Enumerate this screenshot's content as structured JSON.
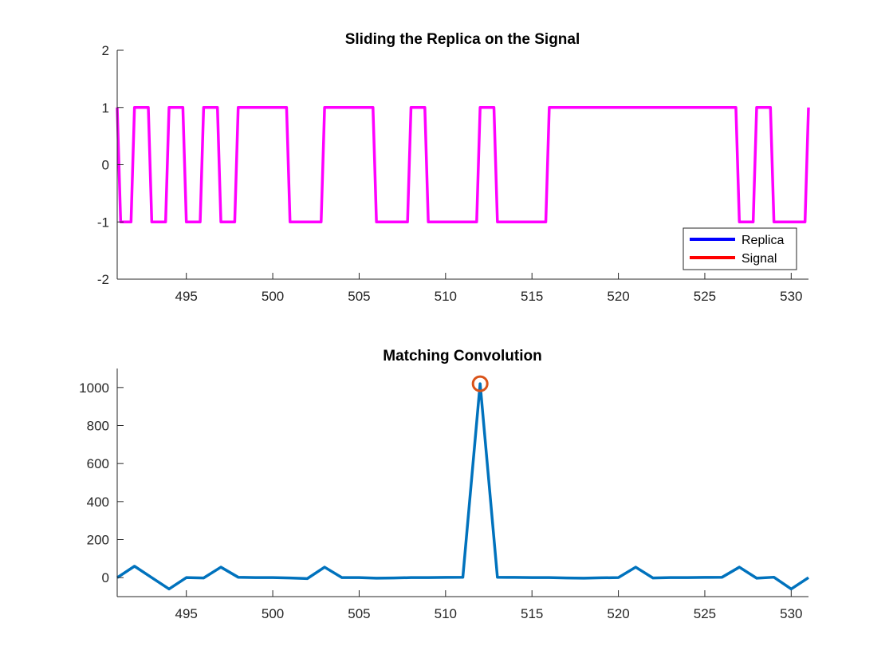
{
  "chart_data": [
    {
      "type": "line",
      "title": "Sliding the Replica on the Signal",
      "xlim": [
        491,
        531
      ],
      "ylim": [
        -2,
        2
      ],
      "xticks": [
        495,
        500,
        505,
        510,
        515,
        520,
        525,
        530
      ],
      "yticks": [
        -2,
        -1,
        0,
        1,
        2
      ],
      "grid": false,
      "legend_position": "bottom-right",
      "legend": [
        "Replica",
        "Signal"
      ],
      "series": [
        {
          "name": "Replica",
          "color": "#0000ff",
          "style": "line",
          "x": [],
          "y": []
        },
        {
          "name": "Signal",
          "color": "#ff0000",
          "style": "line",
          "x": [],
          "y": []
        },
        {
          "color": "#ff00ff",
          "style": "step",
          "x": [
            491,
            491.2,
            491.8,
            492,
            492.8,
            493,
            493.8,
            494,
            494.8,
            495,
            495.8,
            496,
            496.8,
            497,
            497.8,
            498,
            500.8,
            501,
            502.8,
            503,
            505.8,
            506,
            507.8,
            508,
            508.8,
            509,
            511.8,
            512,
            512.8,
            513,
            515.8,
            516,
            526.8,
            527,
            527.8,
            528,
            528.8,
            529,
            530.8,
            531
          ],
          "y": [
            1,
            -1,
            -1,
            1,
            1,
            -1,
            -1,
            1,
            1,
            -1,
            -1,
            1,
            1,
            -1,
            -1,
            1,
            1,
            -1,
            -1,
            1,
            1,
            -1,
            -1,
            1,
            1,
            -1,
            -1,
            1,
            1,
            -1,
            -1,
            1,
            1,
            -1,
            -1,
            1,
            1,
            -1,
            -1,
            1
          ]
        }
      ]
    },
    {
      "type": "line",
      "title": "Matching Convolution",
      "xlim": [
        491,
        531
      ],
      "ylim": [
        -100,
        1100
      ],
      "xticks": [
        495,
        500,
        505,
        510,
        515,
        520,
        525,
        530
      ],
      "yticks": [
        0,
        200,
        400,
        600,
        800,
        1000
      ],
      "grid": false,
      "series": [
        {
          "color": "#0072bd",
          "style": "line",
          "x": [
            491,
            492,
            493,
            494,
            495,
            496,
            497,
            498,
            499,
            500,
            501,
            502,
            503,
            504,
            505,
            506,
            507,
            508,
            509,
            510,
            511,
            512,
            513,
            514,
            515,
            516,
            517,
            518,
            519,
            520,
            521,
            522,
            523,
            524,
            525,
            526,
            527,
            528,
            529,
            530,
            531
          ],
          "y": [
            0,
            60,
            0,
            -60,
            0,
            -2,
            55,
            2,
            0,
            0,
            -2,
            -5,
            55,
            0,
            0,
            -3,
            -2,
            0,
            0,
            1,
            2,
            1020,
            2,
            1,
            0,
            0,
            -2,
            -3,
            -1,
            0,
            55,
            -2,
            0,
            0,
            1,
            2,
            55,
            -3,
            2,
            -60,
            0
          ]
        }
      ],
      "markers": [
        {
          "x": 512,
          "y": 1020,
          "shape": "circle",
          "color": "#d95319"
        }
      ]
    }
  ]
}
